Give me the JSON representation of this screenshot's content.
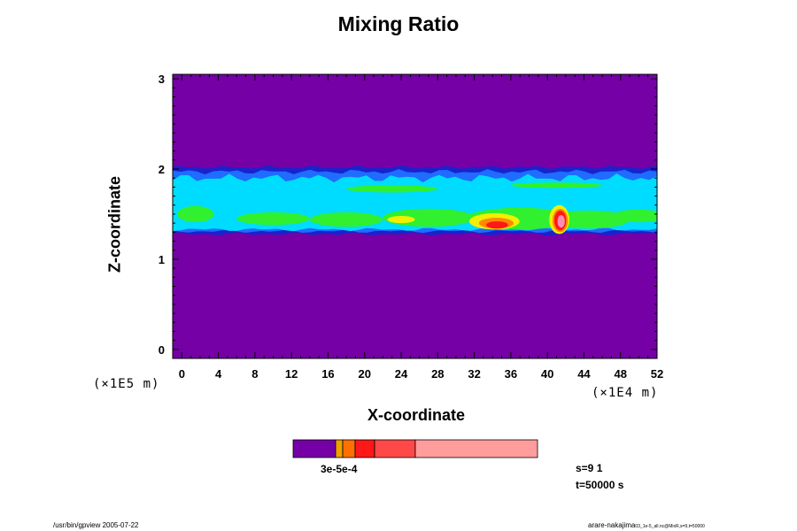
{
  "title": "Mixing Ratio",
  "chart_data": {
    "type": "heatmap",
    "title": "Mixing Ratio",
    "xlabel": "X-coordinate",
    "ylabel": "Z-coordinate",
    "x_unit": "(×1E4 m)",
    "y_unit": "(×1E5 m)",
    "xlim": [
      -1,
      52
    ],
    "ylim": [
      -0.1,
      3.05
    ],
    "x_ticks": [
      0,
      4,
      8,
      12,
      16,
      20,
      24,
      28,
      32,
      36,
      40,
      44,
      48,
      52
    ],
    "y_ticks": [
      0,
      1,
      2,
      3
    ],
    "layer": {
      "z_bottom": 1.3,
      "z_top": 2.0,
      "description_levels": [
        "background",
        "dark-blue",
        "blue",
        "cyan",
        "green",
        "yellow",
        "orange",
        "red",
        "pink"
      ]
    },
    "high_value_features": [
      {
        "x": 34.5,
        "z": 1.38,
        "level": "red"
      },
      {
        "x": 41.4,
        "z": 1.42,
        "level": "pink"
      }
    ],
    "colorbar": {
      "labels": "3e-5e-4",
      "colors": [
        "#7400a6",
        "#f0a000",
        "#ff7000",
        "#ff1818",
        "#ff4848",
        "#ff9c9c"
      ]
    }
  },
  "colors": {
    "background_field": "#7400a6",
    "dark_blue": "#1a22cc",
    "blue": "#1f6cff",
    "cyan": "#00dcff",
    "green": "#30f030",
    "yellow": "#f0f000",
    "orange": "#ff8a00",
    "red": "#ff1818",
    "pink": "#ff8cb4"
  },
  "annotations": {
    "step": "s=9 1",
    "time": "t=50000 s"
  },
  "footer": {
    "left": "/usr/bin/gpview 2005-07-22",
    "right": "arare-nakajima",
    "right_small": "03_1e-5_all.nc@MixR,s=9,t=50000"
  }
}
